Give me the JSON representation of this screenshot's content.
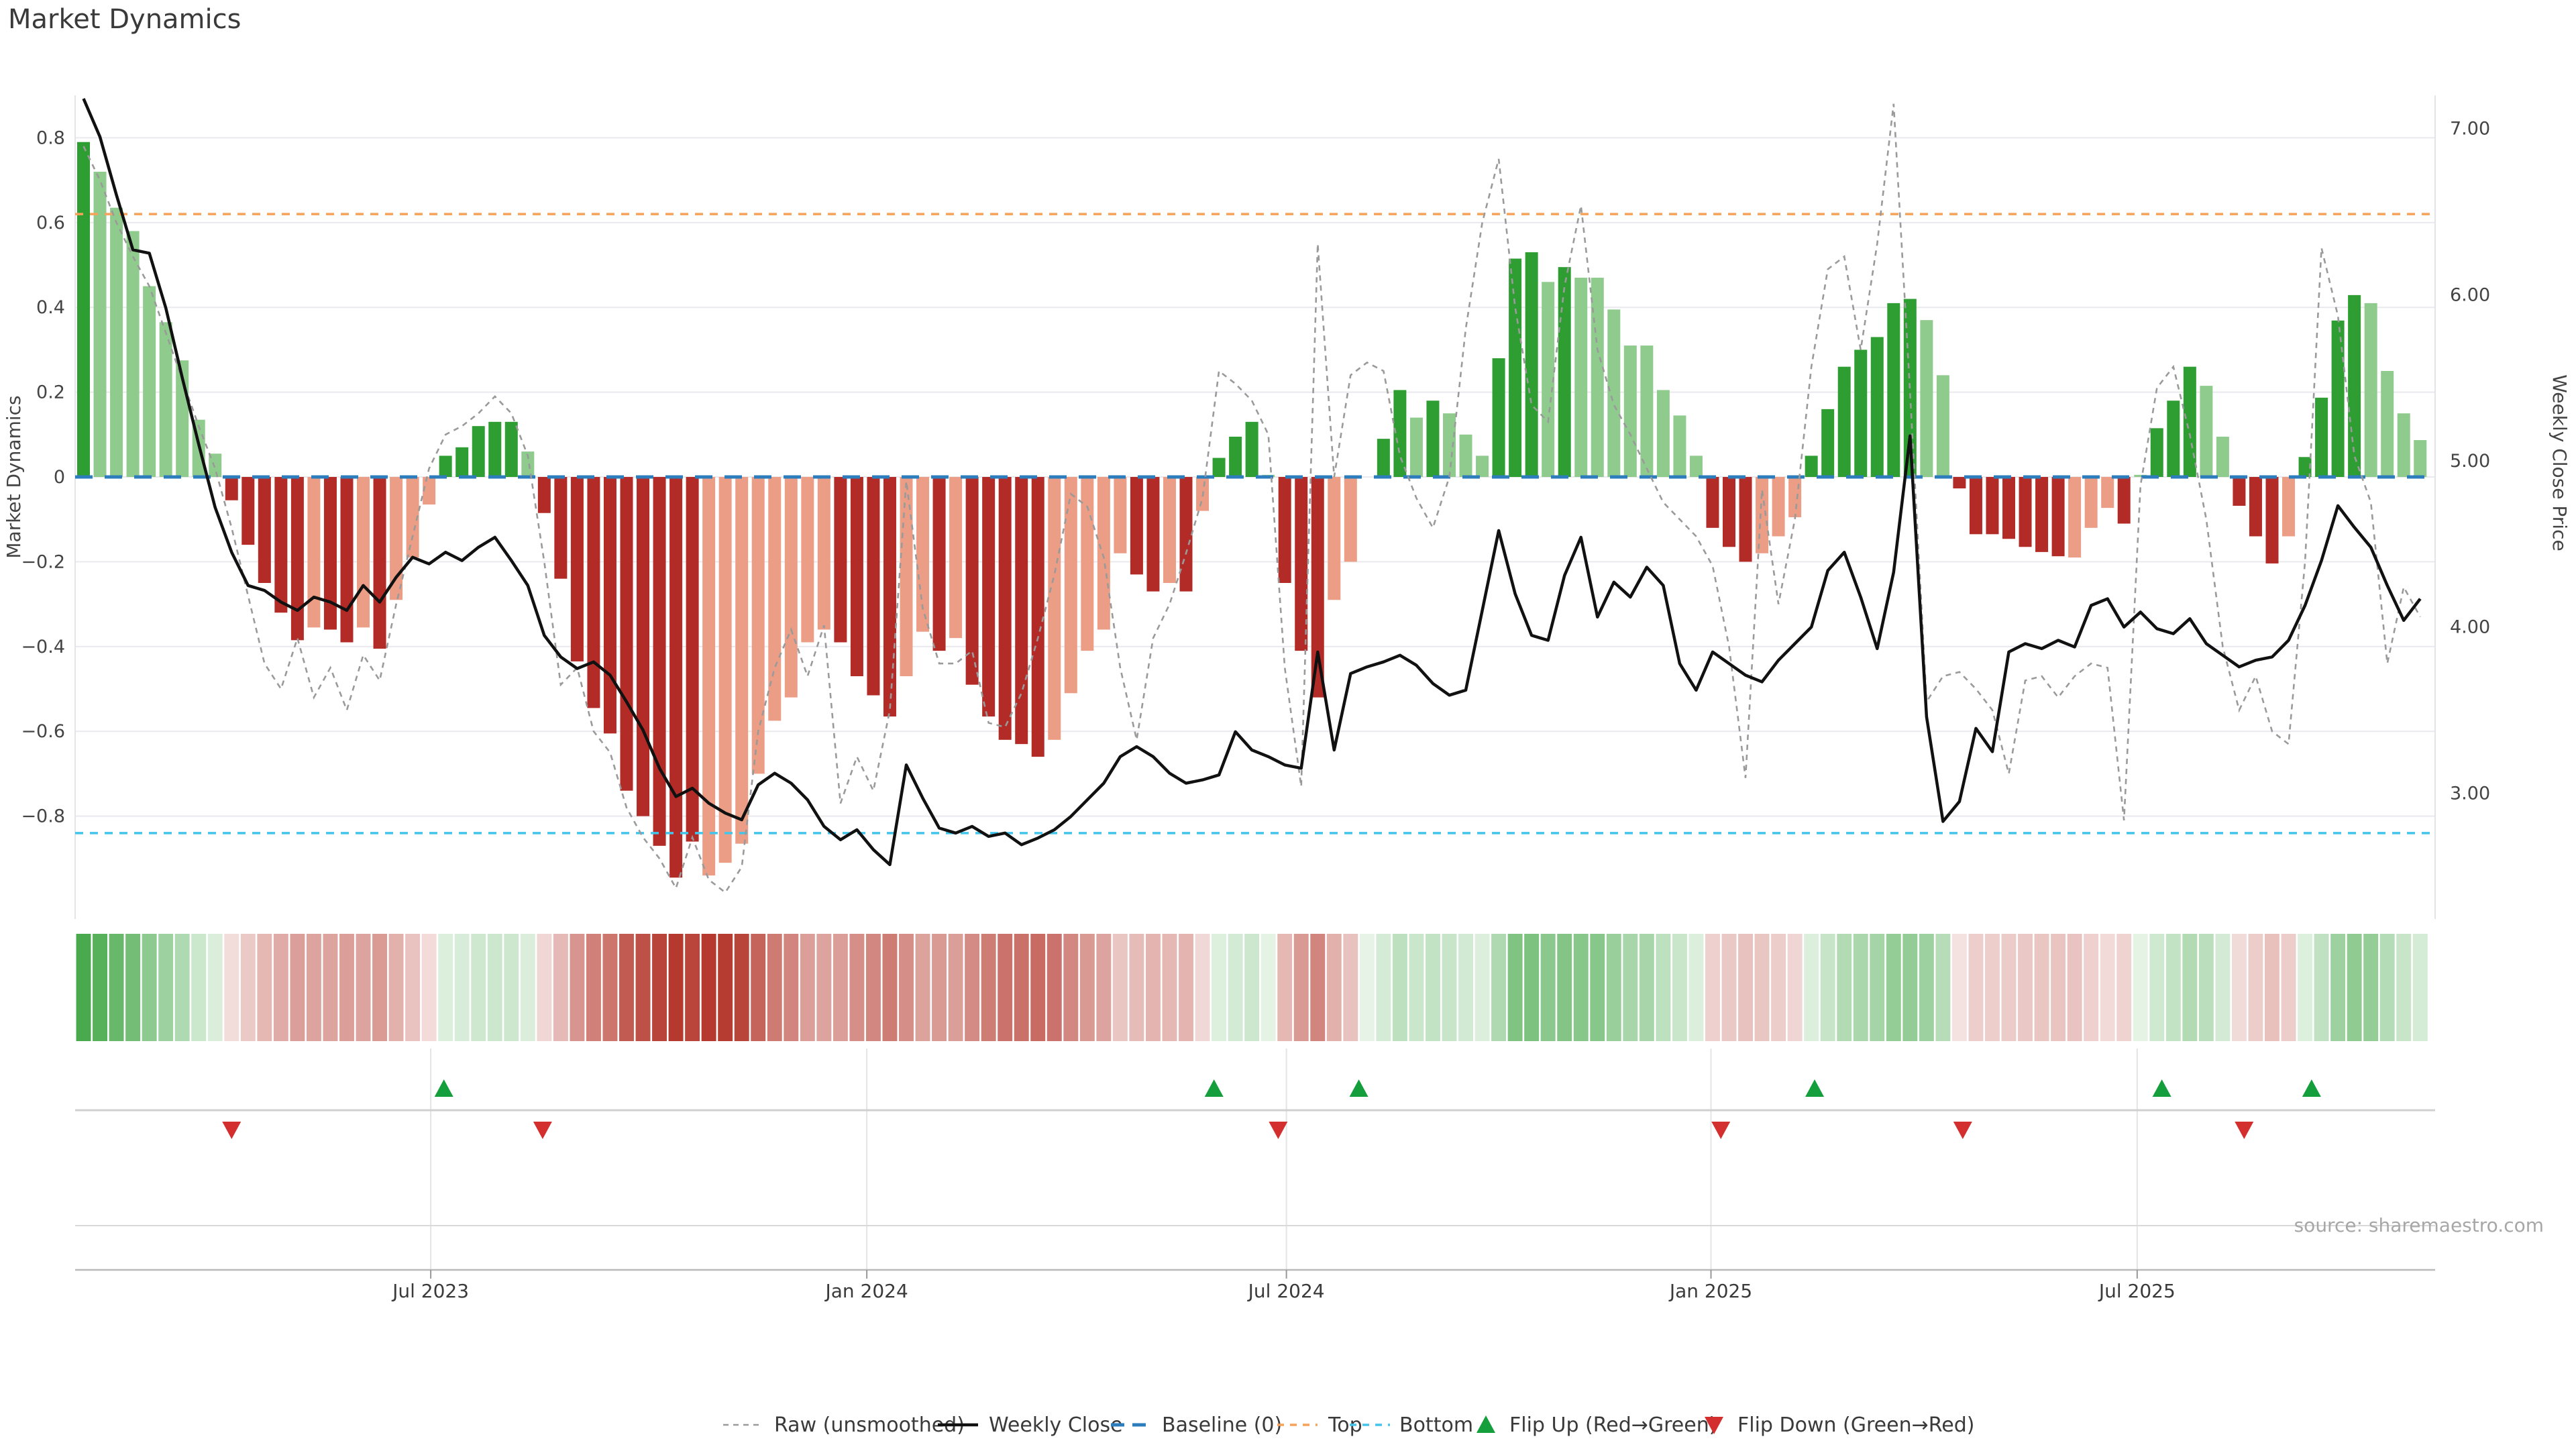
{
  "title": "Market Dynamics",
  "source_note": "source: sharemaestro.com",
  "left_axis": {
    "title": "Market Dynamics",
    "tick_labels": [
      "0.8",
      "0.6",
      "0.4",
      "0.2",
      "0",
      "−0.2",
      "−0.4",
      "−0.6",
      "−0.8"
    ],
    "tick_values": [
      0.8,
      0.6,
      0.4,
      0.2,
      0,
      -0.2,
      -0.4,
      -0.6,
      -0.8
    ]
  },
  "right_axis": {
    "title": "Weekly Close Price",
    "tick_labels": [
      "7.00",
      "6.00",
      "5.00",
      "4.00",
      "3.00"
    ],
    "tick_values": [
      7,
      6,
      5,
      4,
      3
    ]
  },
  "x_axis": {
    "tick_labels": [
      "Jul 2023",
      "Jan 2024",
      "Jul 2024",
      "Jan 2025",
      "Jul 2025"
    ],
    "tick_week_index": [
      21.1,
      47.6,
      73.1,
      98.9,
      124.8
    ]
  },
  "legend": {
    "raw": "Raw (unsmoothed)",
    "close": "Weekly Close",
    "baseline": "Baseline (0)",
    "top": "Top",
    "bottom": "Bottom",
    "flip_up": "Flip Up (Red→Green)",
    "flip_down": "Flip Down (Green→Red)"
  },
  "colors": {
    "bar_green_dark": "#2e9d32",
    "bar_green_light": "#90cb8e",
    "bar_red_dark": "#b32b27",
    "bar_red_light": "#eb9e85",
    "baseline_blue": "#2d7dbd",
    "top_orange": "#f5a25a",
    "bottom_cyan": "#45c4ea",
    "raw_gray": "#9a9a9a",
    "close_black": "#111111",
    "flip_up_green": "#149e3c",
    "flip_down_red": "#d32f2f",
    "grid": "#e9e9ee",
    "text_dark": "#3a3a3a",
    "text_tick": "#444444",
    "heat_green": "#2e9d32",
    "heat_red": "#b5392e"
  },
  "chart_data": {
    "type": "bar+line",
    "x_unit": "weeks",
    "n_weeks": 143,
    "baselines": {
      "baseline": 0,
      "top": 0.62,
      "bottom": -0.84
    },
    "dynamics_ylim": [
      -1.05,
      0.95
    ],
    "price_axis_ticks": [
      7,
      6,
      5,
      4,
      3
    ],
    "series": [
      {
        "name": "Market Dynamics",
        "type": "bar",
        "axis": "dynamics",
        "values": [
          0.79,
          0.72,
          0.635,
          0.58,
          0.45,
          0.365,
          0.275,
          0.135,
          0.055,
          -0.055,
          -0.16,
          -0.25,
          -0.32,
          -0.385,
          -0.355,
          -0.36,
          -0.39,
          -0.355,
          -0.405,
          -0.29,
          -0.19,
          -0.065,
          0.05,
          0.07,
          0.12,
          0.13,
          0.13,
          0.06,
          -0.085,
          -0.24,
          -0.435,
          -0.545,
          -0.605,
          -0.74,
          -0.8,
          -0.87,
          -0.945,
          -0.86,
          -0.94,
          -0.91,
          -0.865,
          -0.7,
          -0.575,
          -0.52,
          -0.39,
          -0.36,
          -0.39,
          -0.47,
          -0.515,
          -0.565,
          -0.47,
          -0.365,
          -0.41,
          -0.38,
          -0.49,
          -0.565,
          -0.62,
          -0.63,
          -0.66,
          -0.62,
          -0.51,
          -0.41,
          -0.36,
          -0.18,
          -0.23,
          -0.27,
          -0.25,
          -0.27,
          -0.08,
          0.045,
          0.095,
          0.13,
          0.005,
          -0.25,
          -0.41,
          -0.52,
          -0.29,
          -0.2,
          0.0,
          0.09,
          0.205,
          0.14,
          0.18,
          0.15,
          0.1,
          0.05,
          0.28,
          0.515,
          0.53,
          0.46,
          0.495,
          0.47,
          0.47,
          0.395,
          0.31,
          0.31,
          0.205,
          0.145,
          0.05,
          -0.12,
          -0.165,
          -0.2,
          -0.18,
          -0.14,
          -0.095,
          0.05,
          0.16,
          0.26,
          0.3,
          0.33,
          0.41,
          0.42,
          0.37,
          0.24,
          -0.027,
          -0.135,
          -0.135,
          -0.146,
          -0.165,
          -0.177,
          -0.187,
          -0.19,
          -0.12,
          -0.073,
          -0.11,
          0.005,
          0.115,
          0.18,
          0.26,
          0.215,
          0.095,
          -0.068,
          -0.14,
          -0.204,
          -0.14,
          0.047,
          0.187,
          0.369,
          0.429,
          0.41,
          0.25,
          0.15,
          0.087
        ],
        "shade": [
          "d",
          "l",
          "l",
          "l",
          "l",
          "l",
          "l",
          "l",
          "l",
          "d",
          "d",
          "d",
          "d",
          "d",
          "l",
          "d",
          "d",
          "l",
          "d",
          "l",
          "l",
          "l",
          "d",
          "d",
          "d",
          "d",
          "d",
          "l",
          "d",
          "d",
          "d",
          "d",
          "d",
          "d",
          "d",
          "d",
          "d",
          "d",
          "l",
          "l",
          "l",
          "l",
          "l",
          "l",
          "l",
          "l",
          "d",
          "d",
          "d",
          "d",
          "l",
          "l",
          "d",
          "l",
          "d",
          "d",
          "d",
          "d",
          "d",
          "l",
          "l",
          "l",
          "l",
          "l",
          "d",
          "d",
          "l",
          "d",
          "l",
          "d",
          "d",
          "d",
          "l",
          "d",
          "d",
          "d",
          "l",
          "l",
          "l",
          "d",
          "d",
          "l",
          "d",
          "l",
          "l",
          "l",
          "d",
          "d",
          "d",
          "l",
          "d",
          "l",
          "l",
          "l",
          "l",
          "l",
          "l",
          "l",
          "l",
          "d",
          "d",
          "d",
          "l",
          "l",
          "l",
          "d",
          "d",
          "d",
          "d",
          "d",
          "d",
          "d",
          "l",
          "l",
          "d",
          "d",
          "d",
          "d",
          "d",
          "d",
          "d",
          "l",
          "l",
          "l",
          "d",
          "l",
          "d",
          "d",
          "d",
          "l",
          "l",
          "d",
          "d",
          "d",
          "l",
          "d",
          "d",
          "d",
          "d",
          "l",
          "l",
          "l",
          "l"
        ]
      },
      {
        "name": "Raw (unsmoothed)",
        "type": "line",
        "axis": "dynamics",
        "values": [
          0.78,
          0.7,
          0.6,
          0.52,
          0.45,
          0.34,
          0.23,
          0.12,
          0.02,
          -0.12,
          -0.28,
          -0.44,
          -0.5,
          -0.38,
          -0.52,
          -0.45,
          -0.55,
          -0.42,
          -0.48,
          -0.3,
          -0.14,
          0.02,
          0.1,
          0.12,
          0.15,
          0.19,
          0.15,
          0.05,
          -0.2,
          -0.49,
          -0.45,
          -0.6,
          -0.65,
          -0.78,
          -0.85,
          -0.9,
          -0.97,
          -0.85,
          -0.95,
          -0.98,
          -0.92,
          -0.6,
          -0.45,
          -0.36,
          -0.47,
          -0.35,
          -0.77,
          -0.66,
          -0.74,
          -0.55,
          -0.01,
          -0.31,
          -0.44,
          -0.44,
          -0.41,
          -0.58,
          -0.59,
          -0.51,
          -0.38,
          -0.23,
          -0.04,
          -0.07,
          -0.19,
          -0.45,
          -0.62,
          -0.38,
          -0.3,
          -0.18,
          -0.05,
          0.25,
          0.22,
          0.18,
          0.1,
          -0.45,
          -0.73,
          0.55,
          0.0,
          0.24,
          0.27,
          0.25,
          0.05,
          -0.05,
          -0.12,
          0.0,
          0.35,
          0.6,
          0.75,
          0.4,
          0.17,
          0.13,
          0.45,
          0.64,
          0.3,
          0.17,
          0.1,
          0.02,
          -0.06,
          -0.1,
          -0.14,
          -0.21,
          -0.4,
          -0.71,
          -0.03,
          -0.3,
          -0.1,
          0.26,
          0.49,
          0.52,
          0.3,
          0.55,
          0.88,
          0.2,
          -0.53,
          -0.47,
          -0.46,
          -0.5,
          -0.55,
          -0.7,
          -0.48,
          -0.47,
          -0.52,
          -0.47,
          -0.44,
          -0.45,
          -0.81,
          -0.02,
          0.21,
          0.26,
          0.1,
          -0.1,
          -0.4,
          -0.55,
          -0.47,
          -0.6,
          -0.63,
          -0.2,
          0.54,
          0.38,
          0.05,
          -0.06,
          -0.44,
          -0.26,
          -0.33
        ]
      },
      {
        "name": "Weekly Close",
        "type": "line",
        "axis": "price",
        "values": [
          7.18,
          6.95,
          6.6,
          6.27,
          6.25,
          5.92,
          5.5,
          5.1,
          4.72,
          4.45,
          4.25,
          4.22,
          4.15,
          4.1,
          4.18,
          4.15,
          4.1,
          4.25,
          4.15,
          4.3,
          4.42,
          4.38,
          4.45,
          4.4,
          4.48,
          4.54,
          4.4,
          4.25,
          3.95,
          3.82,
          3.75,
          3.79,
          3.71,
          3.55,
          3.38,
          3.15,
          2.98,
          3.03,
          2.94,
          2.88,
          2.84,
          3.05,
          3.12,
          3.06,
          2.96,
          2.8,
          2.72,
          2.78,
          2.66,
          2.57,
          3.17,
          2.97,
          2.79,
          2.76,
          2.8,
          2.74,
          2.76,
          2.69,
          2.73,
          2.78,
          2.86,
          2.96,
          3.06,
          3.22,
          3.28,
          3.22,
          3.12,
          3.06,
          3.08,
          3.11,
          3.37,
          3.26,
          3.22,
          3.17,
          3.15,
          3.85,
          3.26,
          3.72,
          3.76,
          3.79,
          3.83,
          3.77,
          3.66,
          3.59,
          3.62,
          4.1,
          4.58,
          4.2,
          3.95,
          3.92,
          4.31,
          4.54,
          4.06,
          4.27,
          4.18,
          4.36,
          4.25,
          3.78,
          3.62,
          3.85,
          3.78,
          3.71,
          3.67,
          3.8,
          3.9,
          4.0,
          4.34,
          4.45,
          4.18,
          3.87,
          4.33,
          5.15,
          3.46,
          2.83,
          2.95,
          3.39,
          3.25,
          3.85,
          3.9,
          3.87,
          3.92,
          3.88,
          4.13,
          4.17,
          4.0,
          4.09,
          3.99,
          3.96,
          4.05,
          3.9,
          3.83,
          3.76,
          3.8,
          3.82,
          3.92,
          4.13,
          4.4,
          4.73,
          4.6,
          4.48,
          4.25,
          4.04,
          4.17
        ]
      }
    ],
    "flip_up_marker_week_index": [
      21.9,
      68.7,
      77.5,
      105.2,
      126.3,
      135.4
    ],
    "flip_down_marker_week_index": [
      9.0,
      27.9,
      72.6,
      99.5,
      114.2,
      131.3
    ]
  }
}
